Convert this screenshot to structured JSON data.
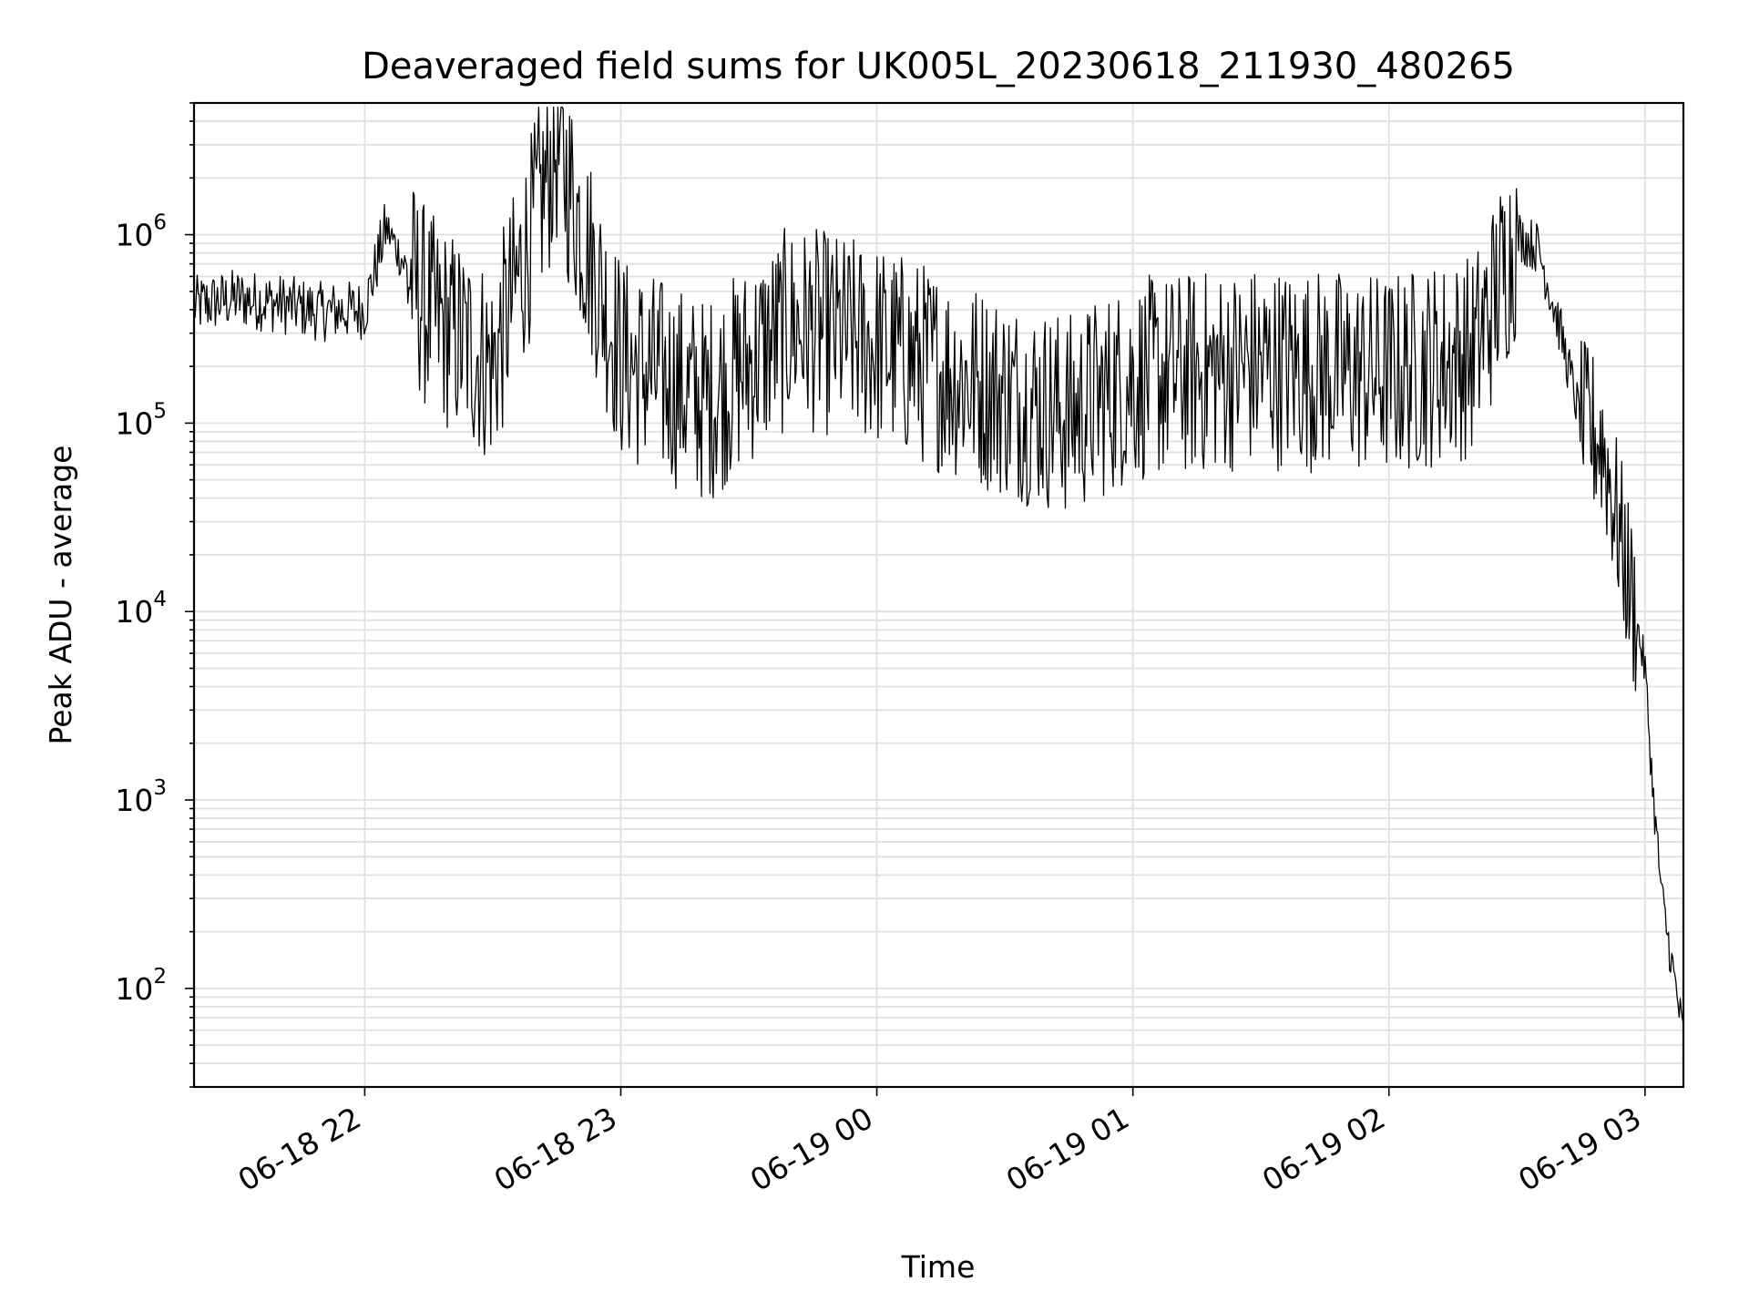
{
  "chart_data": {
    "type": "line",
    "title": "Deaveraged field sums for UK005L_20230618_211930_480265",
    "xlabel": "Time",
    "ylabel": "Peak ADU - average",
    "yscale": "log",
    "ylim": [
      30,
      5000000
    ],
    "xlim": [
      "2023-06-18 21:20",
      "2023-06-19 03:09"
    ],
    "grid": true,
    "x_tick_labels": [
      "06-18 22",
      "06-18 23",
      "06-19 00",
      "06-19 01",
      "06-19 02",
      "06-19 03"
    ],
    "y_tick_labels": [
      {
        "base": "10",
        "exp": "2"
      },
      {
        "base": "10",
        "exp": "3"
      },
      {
        "base": "10",
        "exp": "4"
      },
      {
        "base": "10",
        "exp": "5"
      },
      {
        "base": "10",
        "exp": "6"
      }
    ],
    "line_color": "#000000",
    "grid_color": "#e0e0e0",
    "series": [
      {
        "values": [
          [
            "2023-06-18 21:20",
            420000
          ],
          [
            "2023-06-18 21:30",
            460000
          ],
          [
            "2023-06-18 21:40",
            430000
          ],
          [
            "2023-06-18 21:50",
            390000
          ],
          [
            "2023-06-18 22:00",
            400000
          ],
          [
            "2023-06-18 22:05",
            1100000
          ],
          [
            "2023-06-18 22:15",
            380000
          ],
          [
            "2023-06-18 22:30",
            200000
          ],
          [
            "2023-06-18 22:45",
            3000000
          ],
          [
            "2023-06-18 23:00",
            220000
          ],
          [
            "2023-06-18 23:20",
            130000
          ],
          [
            "2023-06-18 23:40",
            330000
          ],
          [
            "2023-06-19 00:00",
            260000
          ],
          [
            "2023-06-19 00:30",
            140000
          ],
          [
            "2023-06-19 00:45",
            110000
          ],
          [
            "2023-06-19 01:00",
            170000
          ],
          [
            "2023-06-19 01:30",
            200000
          ],
          [
            "2023-06-19 02:00",
            180000
          ],
          [
            "2023-06-19 02:20",
            230000
          ],
          [
            "2023-06-19 02:30",
            1000000
          ],
          [
            "2023-06-19 02:35",
            850000
          ],
          [
            "2023-06-19 02:40",
            320000
          ],
          [
            "2023-06-19 02:45",
            100000
          ],
          [
            "2023-06-19 02:50",
            80000
          ],
          [
            "2023-06-19 02:55",
            20000
          ],
          [
            "2023-06-19 03:00",
            5000
          ],
          [
            "2023-06-19 03:02",
            1000
          ],
          [
            "2023-06-19 03:04",
            300
          ],
          [
            "2023-06-19 03:06",
            150
          ],
          [
            "2023-06-19 03:09",
            55
          ]
        ]
      }
    ]
  }
}
